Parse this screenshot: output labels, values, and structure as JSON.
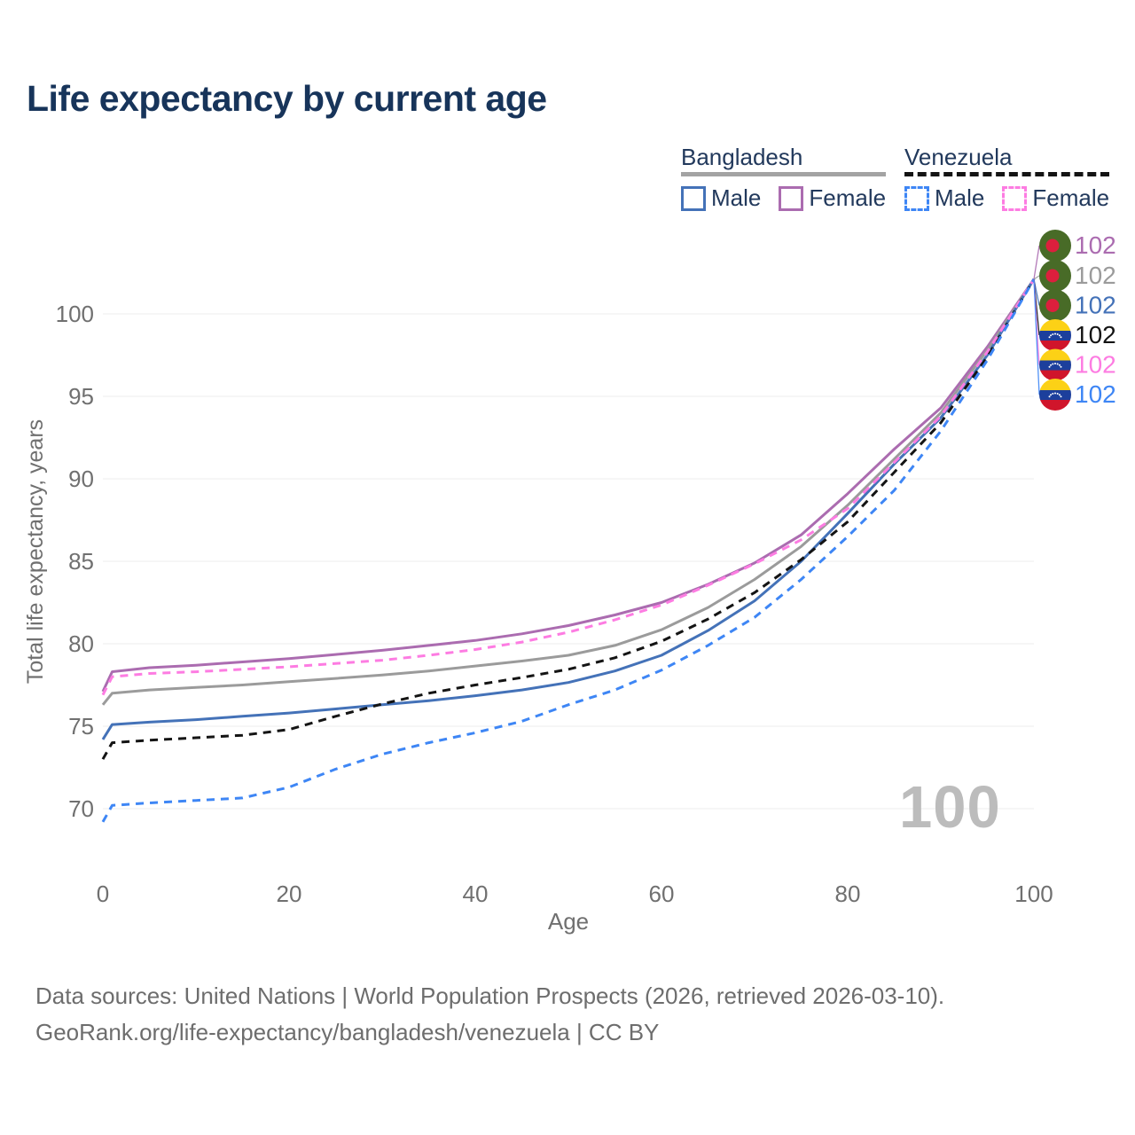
{
  "title": "Life expectancy by current age",
  "watermark": "100",
  "legend": {
    "groups": [
      {
        "name": "Bangladesh",
        "line_style": "solid",
        "underline_color": "#a3a3a3",
        "items": [
          {
            "label": "Male",
            "color": "#4472b8",
            "dashed": false
          },
          {
            "label": "Female",
            "color": "#ab6cb0",
            "dashed": false
          }
        ]
      },
      {
        "name": "Venezuela",
        "line_style": "dashed",
        "underline_color": "#141414",
        "items": [
          {
            "label": "Male",
            "color": "#3e86f5",
            "dashed": true
          },
          {
            "label": "Female",
            "color": "#fd7ce2",
            "dashed": true
          }
        ]
      }
    ]
  },
  "x_axis": {
    "title": "Age",
    "ticks": [
      0,
      20,
      40,
      60,
      80,
      100
    ]
  },
  "y_axis": {
    "title": "Total life expectancy, years",
    "ticks": [
      70,
      75,
      80,
      85,
      90,
      95,
      100
    ]
  },
  "chart_data": {
    "type": "line",
    "xlabel": "Age",
    "ylabel": "Total life expectancy, years",
    "xlim": [
      0,
      100
    ],
    "ylim": [
      67,
      103
    ],
    "grid": "horizontal",
    "legend_position": "top-right",
    "x": [
      0,
      1,
      5,
      10,
      15,
      20,
      25,
      30,
      35,
      40,
      45,
      50,
      55,
      60,
      65,
      70,
      75,
      80,
      85,
      90,
      95,
      100
    ],
    "series": [
      {
        "name": "Bangladesh Female",
        "country": "Bangladesh",
        "sex": "Female",
        "color": "#ab6cb0",
        "dashed": false,
        "end_label": "102",
        "values": [
          77.1,
          78.3,
          78.55,
          78.7,
          78.9,
          79.1,
          79.35,
          79.6,
          79.9,
          80.2,
          80.6,
          81.1,
          81.75,
          82.5,
          83.6,
          84.9,
          86.6,
          89.1,
          91.8,
          94.3,
          98.0,
          102.1
        ]
      },
      {
        "name": "Bangladesh Both sexes",
        "country": "Bangladesh",
        "sex": "Both",
        "color": "#9b9b9b",
        "dashed": false,
        "end_label": "102",
        "values": [
          76.3,
          77.0,
          77.2,
          77.35,
          77.5,
          77.7,
          77.9,
          78.1,
          78.35,
          78.65,
          78.95,
          79.3,
          79.9,
          80.85,
          82.2,
          83.9,
          85.9,
          88.4,
          91.2,
          94.0,
          97.8,
          102.1
        ]
      },
      {
        "name": "Bangladesh Male",
        "country": "Bangladesh",
        "sex": "Male",
        "color": "#4472b8",
        "dashed": false,
        "end_label": "102",
        "values": [
          74.2,
          75.1,
          75.25,
          75.4,
          75.6,
          75.8,
          76.05,
          76.3,
          76.55,
          76.85,
          77.2,
          77.65,
          78.35,
          79.3,
          80.8,
          82.6,
          85.0,
          87.9,
          90.9,
          93.7,
          97.5,
          102.1
        ]
      },
      {
        "name": "Venezuela Both sexes",
        "country": "Venezuela",
        "sex": "Both",
        "color": "#141414",
        "dashed": true,
        "end_label": "102",
        "values": [
          73.0,
          74.0,
          74.15,
          74.3,
          74.45,
          74.8,
          75.6,
          76.35,
          77.0,
          77.5,
          77.95,
          78.45,
          79.15,
          80.15,
          81.5,
          83.1,
          85.1,
          87.4,
          90.4,
          93.4,
          97.4,
          102.1
        ]
      },
      {
        "name": "Venezuela Female",
        "country": "Venezuela",
        "sex": "Female",
        "color": "#fd7ce2",
        "dashed": true,
        "end_label": "102",
        "values": [
          76.9,
          78.0,
          78.2,
          78.3,
          78.45,
          78.6,
          78.8,
          79.0,
          79.3,
          79.65,
          80.1,
          80.7,
          81.45,
          82.35,
          83.55,
          84.85,
          86.3,
          88.2,
          91.0,
          93.8,
          97.7,
          102.1
        ]
      },
      {
        "name": "Venezuela Male",
        "country": "Venezuela",
        "sex": "Male",
        "color": "#3e86f5",
        "dashed": true,
        "end_label": "102",
        "values": [
          69.2,
          70.2,
          70.35,
          70.5,
          70.65,
          71.3,
          72.4,
          73.3,
          74.0,
          74.6,
          75.3,
          76.3,
          77.2,
          78.4,
          79.9,
          81.6,
          83.9,
          86.5,
          89.3,
          92.9,
          97.2,
          102.1
        ]
      }
    ]
  },
  "end_labels": [
    {
      "flag": "bangladesh",
      "value": "102",
      "color": "#ab6cb0"
    },
    {
      "flag": "bangladesh",
      "value": "102",
      "color": "#9b9b9b"
    },
    {
      "flag": "bangladesh",
      "value": "102",
      "color": "#4472b8"
    },
    {
      "flag": "venezuela",
      "value": "102",
      "color": "#141414"
    },
    {
      "flag": "venezuela",
      "value": "102",
      "color": "#fd7ce2"
    },
    {
      "flag": "venezuela",
      "value": "102",
      "color": "#3e86f5"
    }
  ],
  "flag_colors": {
    "bangladesh_green": "#486b27",
    "bangladesh_red": "#dc1f3d",
    "venezuela_yellow": "#fcd116",
    "venezuela_blue": "#1c3f9c",
    "venezuela_red": "#d0152b"
  },
  "colors": {
    "title": "#17345a",
    "legend_text": "#22395c",
    "axis_text": "#707070",
    "gridline": "#ededed",
    "watermark": "#bcbcbc",
    "footer_text": "#6d6d6d"
  },
  "footer": {
    "line1": "Data sources: United Nations | World Population Prospects (2026, retrieved 2026-03-10).",
    "line2": "GeoRank.org/life-expectancy/bangladesh/venezuela | CC BY"
  }
}
